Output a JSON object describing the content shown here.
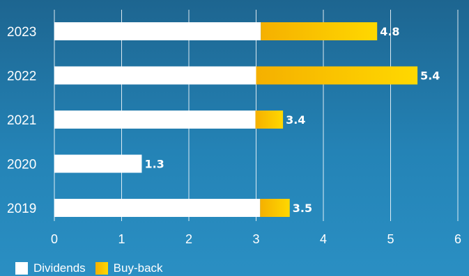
{
  "chart_data": {
    "type": "bar",
    "orientation": "horizontal",
    "stacked": true,
    "categories": [
      "2023",
      "2022",
      "2021",
      "2020",
      "2019"
    ],
    "series": [
      {
        "name": "Dividends",
        "values": [
          3.07,
          3.0,
          2.99,
          1.3,
          3.06
        ],
        "color": "#ffffff"
      },
      {
        "name": "Buy-back",
        "values": [
          1.73,
          2.4,
          0.41,
          0.0,
          0.44
        ],
        "color": "#ffc000"
      }
    ],
    "totals": [
      "4.8",
      "5.4",
      "3.4",
      "1.3",
      "3.5"
    ],
    "xlim": [
      0,
      6
    ],
    "xticks": [
      "0",
      "1",
      "2",
      "3",
      "4",
      "5",
      "6"
    ],
    "grid": true,
    "legend_position": "bottom-left"
  },
  "legend": {
    "dividends_label": "Dividends",
    "buyback_label": "Buy-back"
  },
  "colors": {
    "background_top": "#1d6590",
    "background_bottom": "#2a8fc3",
    "dividends": "#ffffff",
    "buyback_start": "#f5b000",
    "buyback_end": "#ffd800",
    "gridline": "#ffffff"
  }
}
